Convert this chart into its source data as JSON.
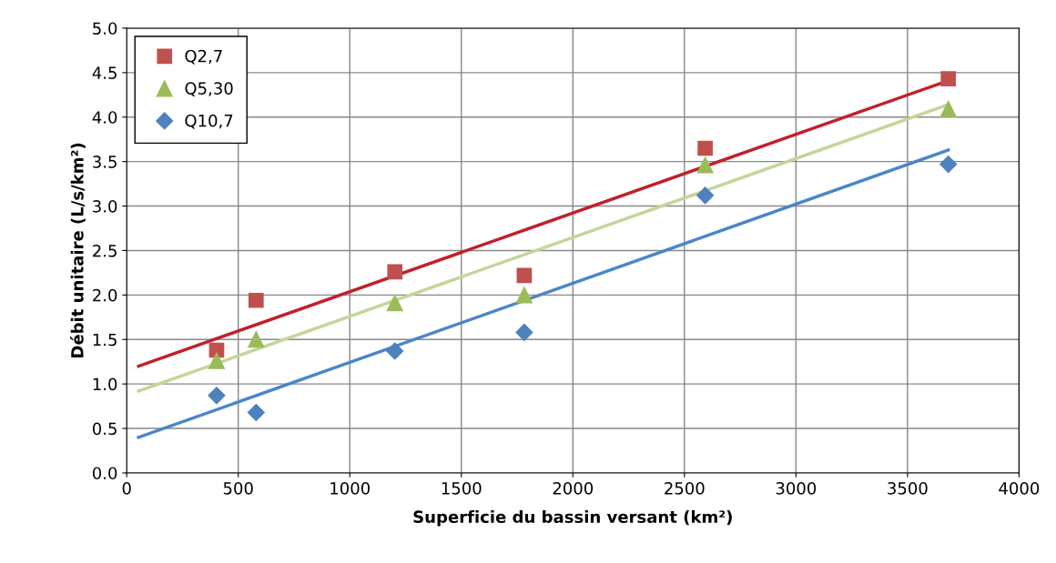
{
  "chart_data": {
    "type": "scatter",
    "xlabel": "Superficie du bassin versant (km²)",
    "ylabel": "Débit unitaire (L/s/km²)",
    "xlim": [
      0,
      4000
    ],
    "xticks": [
      0,
      500,
      1000,
      1500,
      2000,
      2500,
      3000,
      3500,
      4000
    ],
    "ylim": [
      0,
      5
    ],
    "yticks": [
      {
        "value": 0,
        "label": "0.0"
      },
      {
        "value": 0.5,
        "label": "0.5"
      },
      {
        "value": 1,
        "label": "1.0"
      },
      {
        "value": 1.5,
        "label": "1.5"
      },
      {
        "value": 2,
        "label": "2.0"
      },
      {
        "value": 2.5,
        "label": "2.5"
      },
      {
        "value": 3,
        "label": "3.0"
      },
      {
        "value": 3.5,
        "label": "3.5"
      },
      {
        "value": 4,
        "label": "4.0"
      },
      {
        "value": 4.5,
        "label": "4.5"
      },
      {
        "value": 5,
        "label": "5.0"
      }
    ],
    "grid": true,
    "legend": "top left",
    "series": [
      {
        "type": "line",
        "color": "#c0202a",
        "x": [
          53,
          3683
        ],
        "values": [
          1.2,
          4.41
        ],
        "marker": "none"
      },
      {
        "type": "line",
        "color": "#c3d69b",
        "x": [
          53,
          3683
        ],
        "values": [
          0.92,
          4.14
        ],
        "marker": "none"
      },
      {
        "type": "line",
        "color": "#4a86c8",
        "x": [
          53,
          3683
        ],
        "values": [
          0.4,
          3.63
        ],
        "marker": "none"
      },
      {
        "name": "Q2,7",
        "color": "#c0504d",
        "marker": "square",
        "x": [
          403,
          580,
          1202,
          1782,
          2593,
          3683
        ],
        "values": [
          1.38,
          1.94,
          2.26,
          2.22,
          3.65,
          4.43
        ]
      },
      {
        "name": "Q5,30",
        "color": "#9bbb59",
        "marker": "triangle",
        "x": [
          403,
          580,
          1202,
          1782,
          2593,
          3683
        ],
        "values": [
          1.26,
          1.5,
          1.91,
          2.0,
          3.46,
          4.09
        ]
      },
      {
        "name": "Q10,7",
        "color": "#4f81bd",
        "marker": "diamond",
        "x": [
          403,
          580,
          1202,
          1782,
          2593,
          3683
        ],
        "values": [
          0.87,
          0.68,
          1.37,
          1.58,
          3.12,
          3.47
        ]
      }
    ]
  }
}
